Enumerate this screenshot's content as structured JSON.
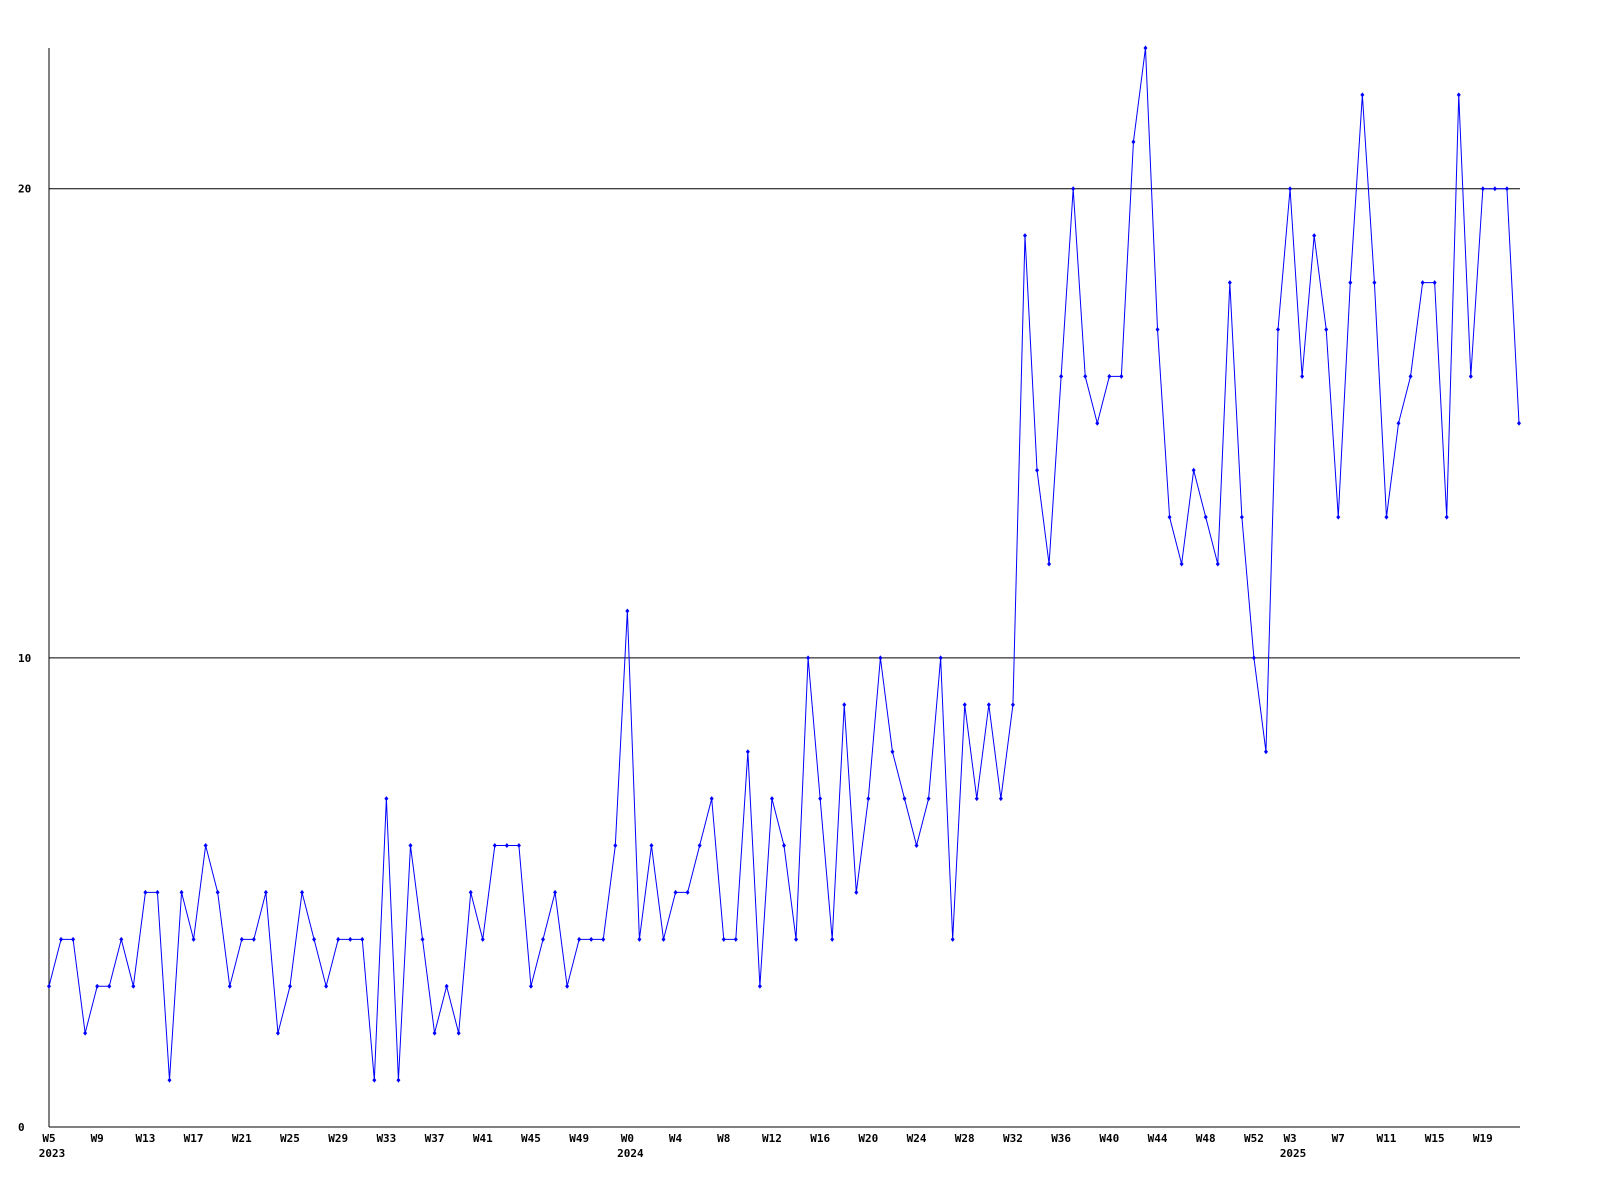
{
  "chart_data": {
    "type": "line",
    "categories": [
      "W5",
      null,
      null,
      null,
      "W9",
      null,
      null,
      null,
      "W13",
      null,
      null,
      null,
      "W17",
      null,
      null,
      null,
      "W21",
      null,
      null,
      null,
      "W25",
      null,
      null,
      null,
      "W29",
      null,
      null,
      null,
      "W33",
      null,
      null,
      null,
      "W37",
      null,
      null,
      null,
      "W41",
      null,
      null,
      null,
      "W45",
      null,
      null,
      null,
      "W49",
      null,
      null,
      null,
      "W0",
      null,
      null,
      null,
      "W4",
      null,
      null,
      null,
      "W8",
      null,
      null,
      null,
      "W12",
      null,
      null,
      null,
      "W16",
      null,
      null,
      null,
      "W20",
      null,
      null,
      null,
      "W24",
      null,
      null,
      null,
      "W28",
      null,
      null,
      null,
      "W32",
      null,
      null,
      null,
      "W36",
      null,
      null,
      null,
      "W40",
      null,
      null,
      null,
      "W44",
      null,
      null,
      null,
      "W48",
      null,
      null,
      null,
      "W52",
      null,
      null,
      "W3",
      null,
      null,
      null,
      "W7",
      null,
      null,
      null,
      "W11",
      null,
      null,
      null,
      "W15",
      null,
      null,
      null,
      "W19",
      null,
      null,
      null
    ],
    "years": [
      "2023",
      null,
      null,
      null,
      null,
      null,
      null,
      null,
      null,
      null,
      null,
      null,
      null,
      null,
      null,
      null,
      null,
      null,
      null,
      null,
      null,
      null,
      null,
      null,
      null,
      null,
      null,
      null,
      null,
      null,
      null,
      null,
      null,
      null,
      null,
      null,
      null,
      null,
      null,
      null,
      null,
      null,
      null,
      null,
      null,
      null,
      null,
      null,
      "2024",
      null,
      null,
      null,
      null,
      null,
      null,
      null,
      null,
      null,
      null,
      null,
      null,
      null,
      null,
      null,
      null,
      null,
      null,
      null,
      null,
      null,
      null,
      null,
      null,
      null,
      null,
      null,
      null,
      null,
      null,
      null,
      null,
      null,
      null,
      null,
      null,
      null,
      null,
      null,
      null,
      null,
      null,
      null,
      null,
      null,
      null,
      null,
      null,
      null,
      null,
      null,
      null,
      null,
      null,
      "2025",
      null,
      null,
      null,
      null,
      null,
      null,
      null,
      null,
      null,
      null,
      null,
      null,
      null,
      null,
      null,
      null,
      null,
      null,
      null,
      null,
      null
    ],
    "series": [
      {
        "color": "#0000ff",
        "values": [
          3,
          4,
          4,
          2,
          3,
          3,
          4,
          3,
          5,
          5,
          1,
          5,
          4,
          6,
          5,
          3,
          4,
          4,
          5,
          2,
          3,
          5,
          4,
          3,
          4,
          4,
          4,
          1,
          7,
          1,
          6,
          4,
          2,
          3,
          2,
          5,
          4,
          6,
          6,
          6,
          3,
          4,
          5,
          3,
          4,
          4,
          4,
          6,
          11,
          4,
          6,
          4,
          5,
          5,
          6,
          7,
          4,
          4,
          8,
          3,
          7,
          6,
          4,
          10,
          7,
          4,
          9,
          5,
          7,
          10,
          8,
          7,
          6,
          7,
          10,
          4,
          9,
          7,
          9,
          7,
          9,
          19,
          14,
          12,
          16,
          20,
          16,
          15,
          16,
          16,
          21,
          23,
          17,
          13,
          12,
          14,
          13,
          12,
          18,
          13,
          10,
          8,
          17,
          20,
          16,
          19,
          17,
          13,
          18,
          22,
          18,
          13,
          15,
          16,
          18,
          18,
          13,
          22,
          16,
          20,
          20,
          20,
          15
        ]
      }
    ],
    "ylim": [
      0,
      23
    ],
    "yticks": [
      0,
      10,
      20
    ],
    "grid": true
  }
}
